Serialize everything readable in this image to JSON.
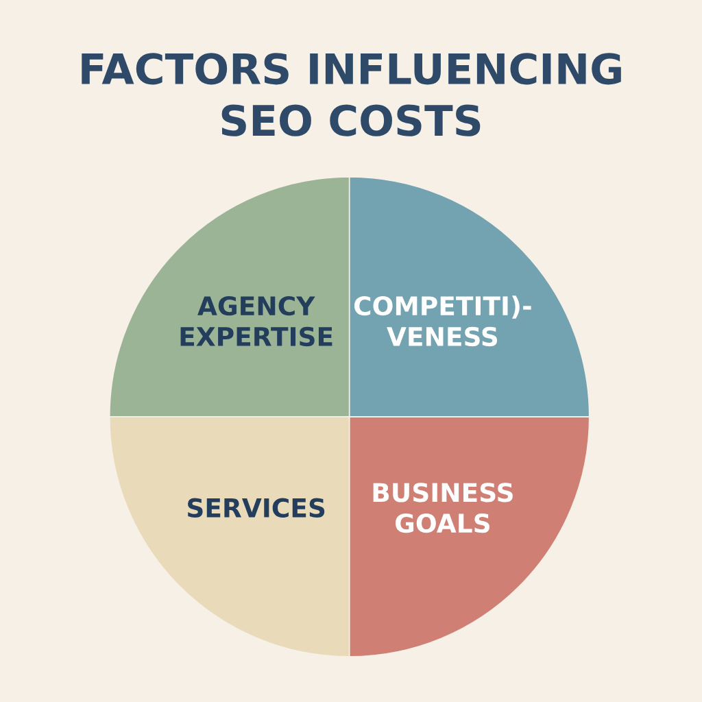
{
  "chart_data": {
    "type": "pie",
    "title": "FACTORS INFLUENCING\nSEO COSTS",
    "categories": [
      "AGENCY\nEXPERTISE",
      "SERVICES",
      "BUSINESS\nGOALS",
      "COMPETITI)-\nVENESS"
    ],
    "values": [
      25,
      25,
      25,
      25
    ],
    "colors": [
      "#9cb496",
      "#e9dab9",
      "#cf7f73",
      "#73a2b0"
    ]
  }
}
